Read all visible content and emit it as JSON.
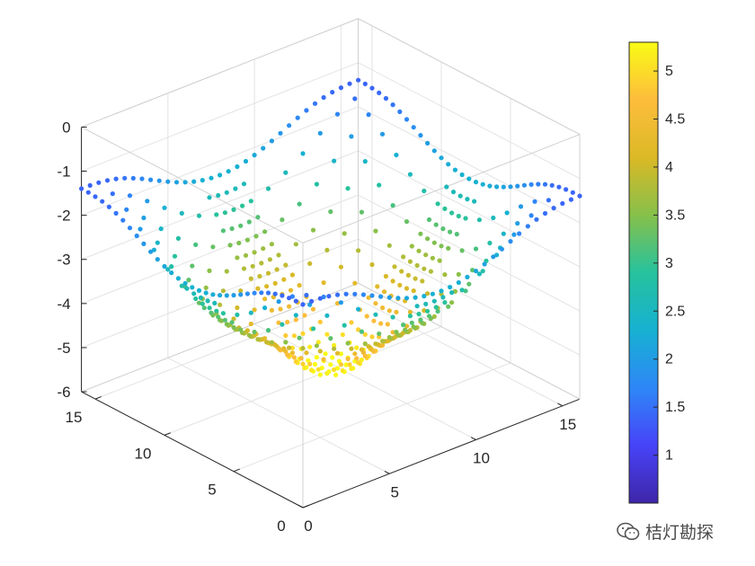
{
  "chart_data": {
    "type": "scatter3d",
    "description_of_data": "",
    "x_ticks": [
      "0",
      "5",
      "10",
      "15"
    ],
    "y_ticks": [
      "0",
      "5",
      "10",
      "15"
    ],
    "z_ticks": [
      "0",
      "-1",
      "-2",
      "-3",
      "-4",
      "-5",
      "-6"
    ],
    "xlim": [
      0,
      16
    ],
    "ylim": [
      0,
      16
    ],
    "zlim": [
      -6,
      0
    ],
    "grid": true,
    "colorbar": {
      "ticks": [
        "5",
        "4.5",
        "4",
        "3.5",
        "3",
        "2.5",
        "2",
        "1.5",
        "1"
      ],
      "clim": [
        0.5,
        5.3
      ],
      "colormap": [
        "#3e26a8",
        "#4743f8",
        "#2e87f7",
        "#17b1d2",
        "#26c29d",
        "#86c04a",
        "#dbb926",
        "#fdbd3c",
        "#f9fb15"
      ]
    }
  },
  "watermark": {
    "text": "桔灯勘探"
  }
}
